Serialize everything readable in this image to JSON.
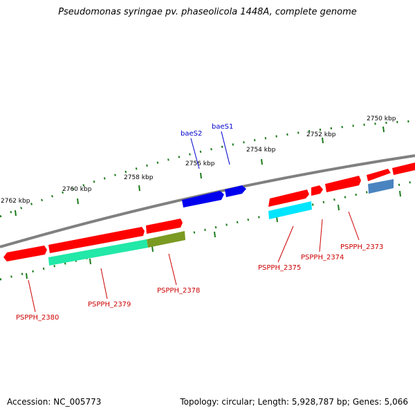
{
  "title": "Pseudomonas syringae pv. phaseolicola 1448A, complete genome",
  "footer": {
    "accession": "Accession: NC_005773",
    "summary": "Topology: circular; Length: 5,928,787 bp; Genes: 5,066"
  },
  "scale_labels": [
    "2750 kbp",
    "2752 kbp",
    "2754 kbp",
    "2756 kbp",
    "2758 kbp",
    "2760 kbp",
    "2762 kbp"
  ],
  "gene_labels_top": [
    "baeS2",
    "baeS1"
  ],
  "gene_labels_bottom": [
    "PSPPH_2373",
    "PSPPH_2374",
    "PSPPH_2375",
    "PSPPH_2378",
    "PSPPH_2379",
    "PSPPH_2380"
  ],
  "colors": {
    "backbone": "#808080",
    "tick": "#1a7a1a",
    "gene_forward": "#ff0000",
    "gene_blue": "#0000ee",
    "label_blue": "#0000cc",
    "label_red": "#cc0000",
    "feature_cyan": "#00e5ff",
    "feature_teal": "#22e8a8",
    "feature_olive": "#7a9a22",
    "feature_steel": "#4a84c0"
  }
}
